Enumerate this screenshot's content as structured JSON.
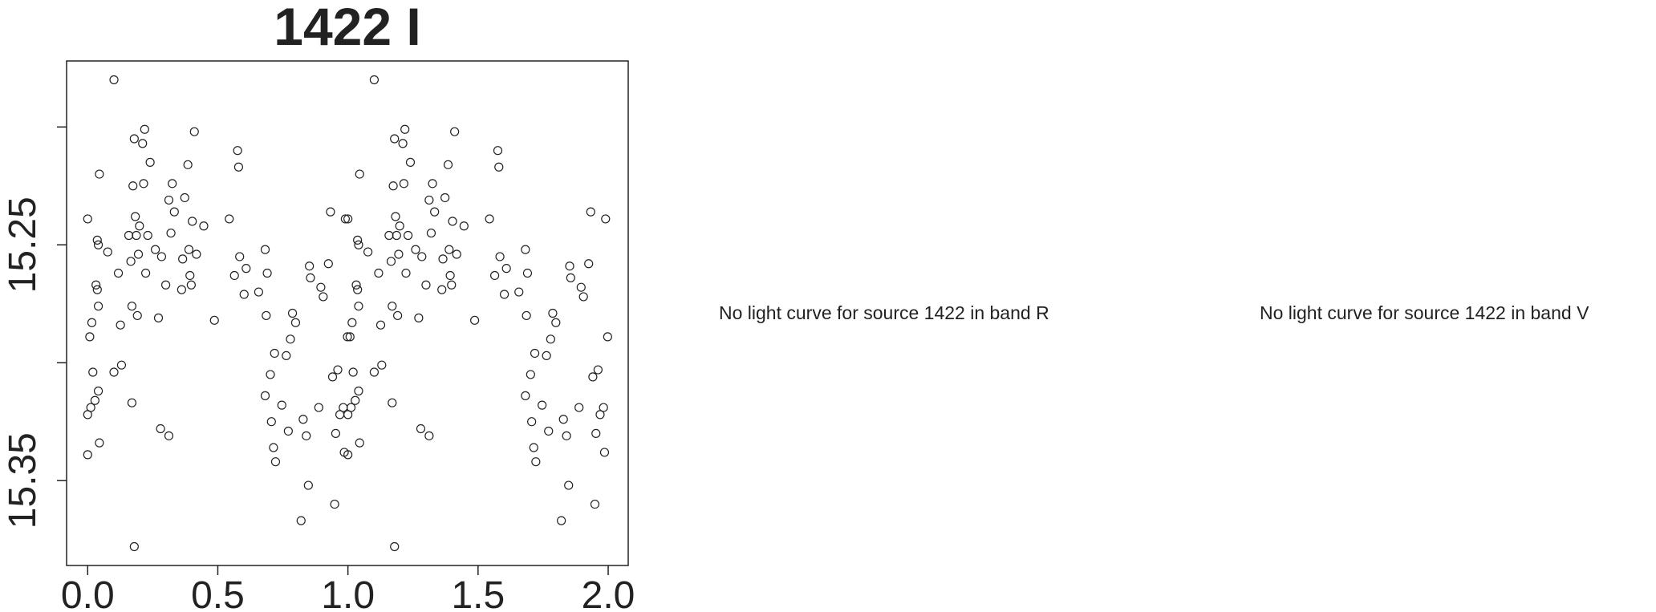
{
  "chart_data": {
    "type": "scatter",
    "title": "1422 I",
    "x": [
      0,
      0,
      0,
      0.008,
      0.012,
      0.016,
      0.02,
      0.028,
      0.032,
      0.037,
      0.041,
      0.041,
      0.045,
      0.037,
      0.041,
      0.045,
      0.077,
      0.101,
      0.101,
      0.118,
      0.126,
      0.13,
      0.158,
      0.166,
      0.17,
      0.17,
      0.174,
      0.179,
      0.179,
      0.183,
      0.187,
      0.191,
      0.195,
      0.199,
      0.211,
      0.215,
      0.219,
      0.223,
      0.231,
      0.24,
      0.26,
      0.272,
      0.28,
      0.284,
      0.3,
      0.312,
      0.312,
      0.32,
      0.325,
      0.333,
      0.361,
      0.365,
      0.373,
      0.385,
      0.389,
      0.393,
      0.398,
      0.402,
      0.41,
      0.418,
      0.446,
      0.487,
      0.544,
      0.564,
      0.576,
      0.58,
      0.584,
      0.609,
      0.601,
      0.657,
      0.682,
      0.686,
      0.682,
      0.69,
      0.702,
      0.706,
      0.718,
      0.714,
      0.722,
      0.746,
      0.763,
      0.771,
      0.779,
      0.787,
      0.799,
      0.82,
      0.828,
      0.84,
      0.848,
      0.852,
      0.856,
      0.888,
      0.896,
      0.905,
      0.925,
      0.933,
      0.941,
      0.949,
      0.953,
      0.961,
      0.969,
      0.982,
      0.986,
      0.99,
      0.998,
      1,
      1,
      1,
      1.008,
      1.012,
      1.016,
      1.02,
      1.028,
      1.032,
      1.037,
      1.041,
      1.041,
      1.045,
      1.037,
      1.041,
      1.045,
      1.077,
      1.101,
      1.101,
      1.118,
      1.126,
      1.13,
      1.158,
      1.166,
      1.17,
      1.17,
      1.174,
      1.179,
      1.179,
      1.183,
      1.187,
      1.191,
      1.195,
      1.199,
      1.211,
      1.215,
      1.219,
      1.223,
      1.231,
      1.24,
      1.26,
      1.272,
      1.28,
      1.284,
      1.3,
      1.312,
      1.312,
      1.32,
      1.325,
      1.333,
      1.361,
      1.365,
      1.373,
      1.385,
      1.389,
      1.393,
      1.398,
      1.402,
      1.41,
      1.418,
      1.446,
      1.487,
      1.544,
      1.564,
      1.576,
      1.58,
      1.584,
      1.609,
      1.601,
      1.657,
      1.682,
      1.686,
      1.682,
      1.69,
      1.702,
      1.706,
      1.718,
      1.714,
      1.722,
      1.746,
      1.763,
      1.771,
      1.779,
      1.787,
      1.799,
      1.82,
      1.828,
      1.84,
      1.848,
      1.852,
      1.856,
      1.888,
      1.896,
      1.905,
      1.925,
      1.933,
      1.941,
      1.949,
      1.953,
      1.961,
      1.969,
      1.982,
      1.986,
      1.99,
      1.998
    ],
    "values": [
      15.239,
      15.322,
      15.339,
      15.289,
      15.319,
      15.283,
      15.304,
      15.316,
      15.267,
      15.269,
      15.276,
      15.312,
      15.22,
      15.248,
      15.25,
      15.334,
      15.253,
      15.18,
      15.304,
      15.262,
      15.284,
      15.301,
      15.246,
      15.257,
      15.276,
      15.317,
      15.225,
      15.205,
      15.378,
      15.238,
      15.246,
      15.28,
      15.254,
      15.242,
      15.207,
      15.224,
      15.201,
      15.262,
      15.246,
      15.215,
      15.252,
      15.281,
      15.328,
      15.255,
      15.267,
      15.331,
      15.231,
      15.245,
      15.224,
      15.236,
      15.269,
      15.256,
      15.23,
      15.216,
      15.252,
      15.263,
      15.267,
      15.24,
      15.202,
      15.254,
      15.242,
      15.282,
      15.239,
      15.263,
      15.21,
      15.217,
      15.255,
      15.26,
      15.271,
      15.27,
      15.252,
      15.28,
      15.314,
      15.262,
      15.305,
      15.325,
      15.296,
      15.336,
      15.342,
      15.318,
      15.297,
      15.329,
      15.29,
      15.279,
      15.283,
      15.367,
      15.324,
      15.331,
      15.352,
      15.259,
      15.264,
      15.319,
      15.268,
      15.272,
      15.258,
      15.236,
      15.306,
      15.36,
      15.33,
      15.303,
      15.322,
      15.319,
      15.338,
      15.239,
      15.289,
      15.239,
      15.322,
      15.339,
      15.289,
      15.319,
      15.283,
      15.304,
      15.316,
      15.267,
      15.269,
      15.276,
      15.312,
      15.22,
      15.248,
      15.25,
      15.334,
      15.253,
      15.18,
      15.304,
      15.262,
      15.284,
      15.301,
      15.246,
      15.257,
      15.276,
      15.317,
      15.225,
      15.205,
      15.378,
      15.238,
      15.246,
      15.28,
      15.254,
      15.242,
      15.207,
      15.224,
      15.201,
      15.262,
      15.246,
      15.215,
      15.252,
      15.281,
      15.328,
      15.255,
      15.267,
      15.331,
      15.231,
      15.245,
      15.224,
      15.236,
      15.269,
      15.256,
      15.23,
      15.216,
      15.252,
      15.263,
      15.267,
      15.24,
      15.202,
      15.254,
      15.242,
      15.282,
      15.239,
      15.263,
      15.21,
      15.217,
      15.255,
      15.26,
      15.271,
      15.27,
      15.252,
      15.28,
      15.314,
      15.262,
      15.305,
      15.325,
      15.296,
      15.336,
      15.342,
      15.318,
      15.297,
      15.329,
      15.29,
      15.279,
      15.283,
      15.367,
      15.324,
      15.331,
      15.352,
      15.259,
      15.264,
      15.319,
      15.268,
      15.272,
      15.258,
      15.236,
      15.306,
      15.36,
      15.33,
      15.303,
      15.322,
      15.319,
      15.338,
      15.239,
      15.289
    ],
    "color": "#222222",
    "xlim": [
      -0.081,
      2.077
    ],
    "xticks": [
      {
        "value": 0,
        "label": "0.0"
      },
      0.5,
      {
        "value": 1,
        "label": "1.0"
      },
      1.5,
      {
        "value": 2,
        "label": "2.0"
      }
    ],
    "ylim": [
      15.386,
      15.172
    ],
    "yticks": [
      {
        "value": 15.2,
        "label": null
      },
      15.25,
      {
        "value": 15.3,
        "label": null
      },
      15.35
    ]
  },
  "notes": [
    "No light curve for source 1422 in band R",
    "No light curve for source 1422 in band V"
  ]
}
